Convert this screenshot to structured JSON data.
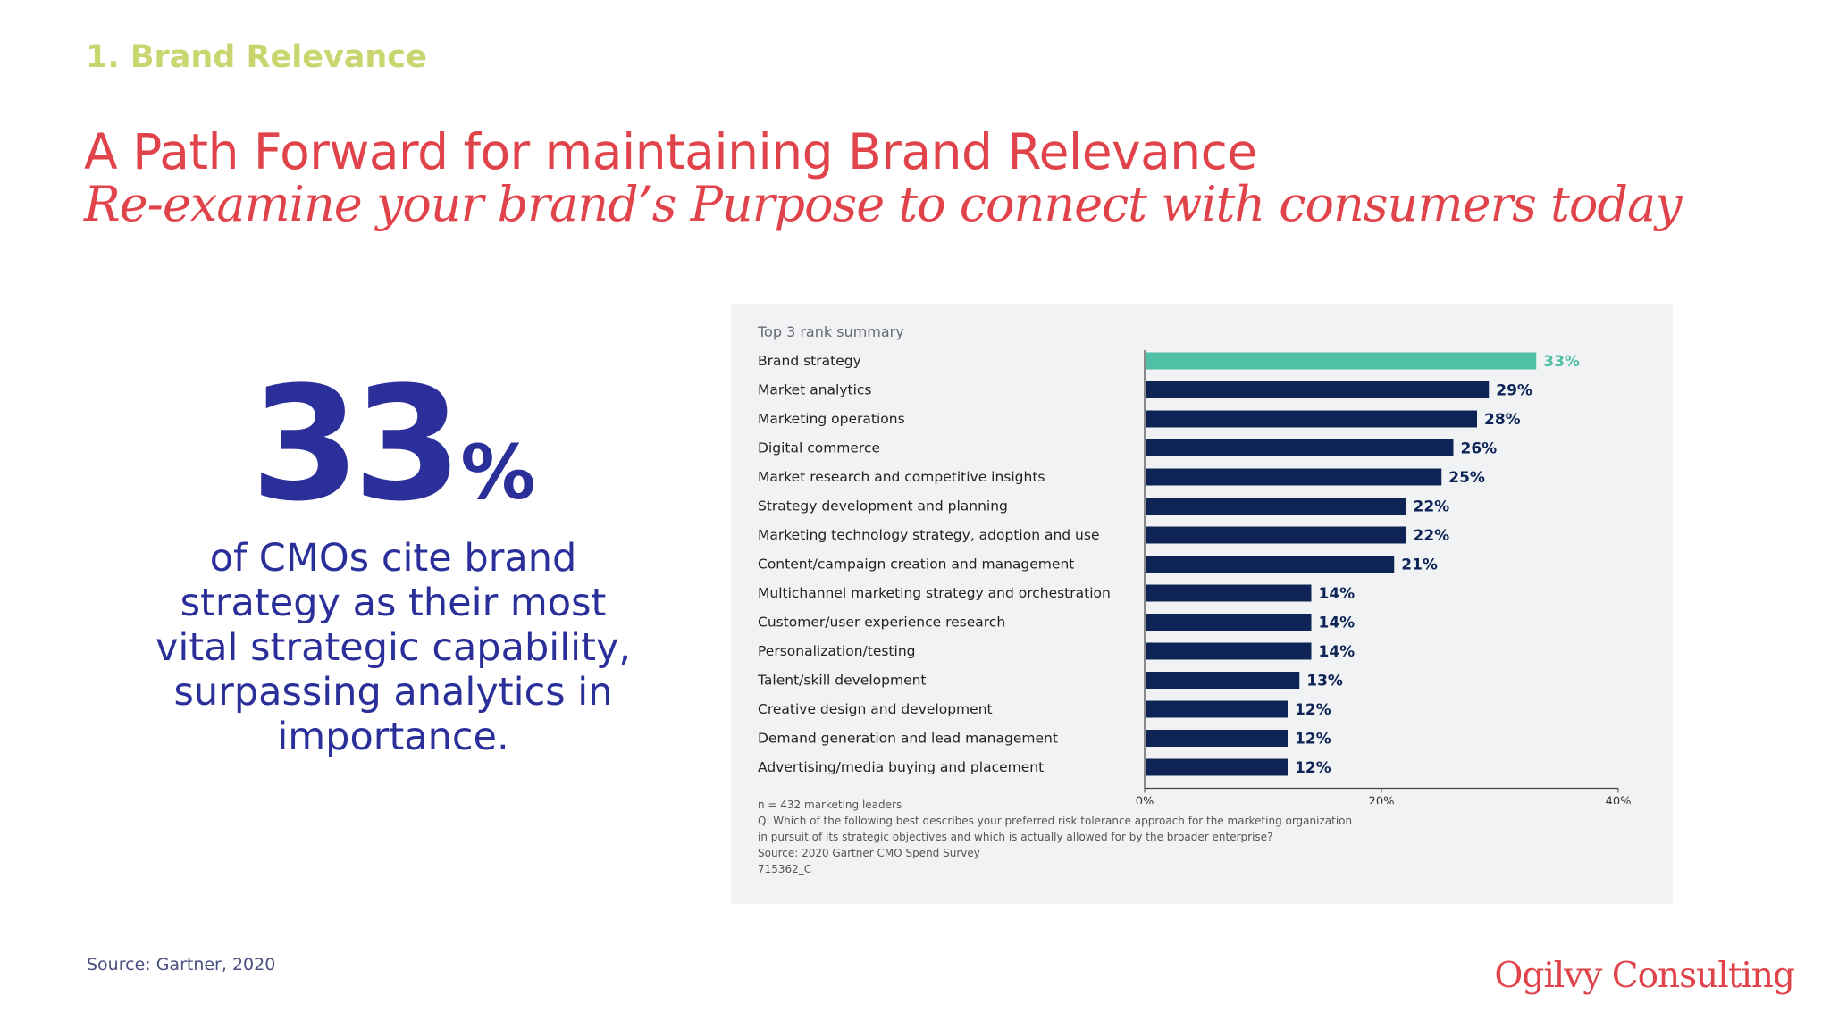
{
  "header": {
    "section_label": "1. Brand Relevance",
    "title": "A Path Forward for maintaining Brand Relevance",
    "subtitle": "Re-examine your brand’s Purpose to connect with consumers today"
  },
  "stat": {
    "number": "33",
    "unit": "%",
    "text": "of CMOs cite brand strategy as their most vital strategic capability, surpassing analytics in importance."
  },
  "footer": {
    "source": "Source: Gartner, 2020",
    "logo": "Ogilvy Consulting"
  },
  "chart_data": {
    "type": "bar",
    "orientation": "horizontal",
    "title": "Top 3 rank summary",
    "categories": [
      "Brand strategy",
      "Market analytics",
      "Marketing operations",
      "Digital commerce",
      "Market research and competitive insights",
      "Strategy development and planning",
      "Marketing technology strategy, adoption and use",
      "Content/campaign creation and management",
      "Multichannel marketing strategy and orchestration",
      "Customer/user experience research",
      "Personalization/testing",
      "Talent/skill development",
      "Creative design and development",
      "Demand generation and lead management",
      "Advertising/media buying and placement"
    ],
    "values": [
      33,
      29,
      28,
      26,
      25,
      22,
      22,
      21,
      14,
      14,
      14,
      13,
      12,
      12,
      12
    ],
    "value_labels": [
      "33%",
      "29%",
      "28%",
      "26%",
      "25%",
      "22%",
      "22%",
      "21%",
      "14%",
      "14%",
      "14%",
      "13%",
      "12%",
      "12%",
      "12%"
    ],
    "xlim": [
      0,
      40
    ],
    "x_ticks": [
      0,
      20,
      40
    ],
    "x_tick_labels": [
      "0%",
      "20%",
      "40%"
    ],
    "grid": false,
    "colors": {
      "highlight": "#4fbfa5",
      "bar": "#0e2456",
      "label": "#0e2456"
    },
    "highlight_index": 0,
    "notes": [
      "n = 432 marketing leaders",
      "Q: Which of the following best describes your preferred risk tolerance approach for the marketing organization",
      "in pursuit of its strategic objectives and which is actually allowed for by the broader enterprise?",
      "Source: 2020 Gartner CMO Spend Survey",
      "715362_C"
    ]
  }
}
